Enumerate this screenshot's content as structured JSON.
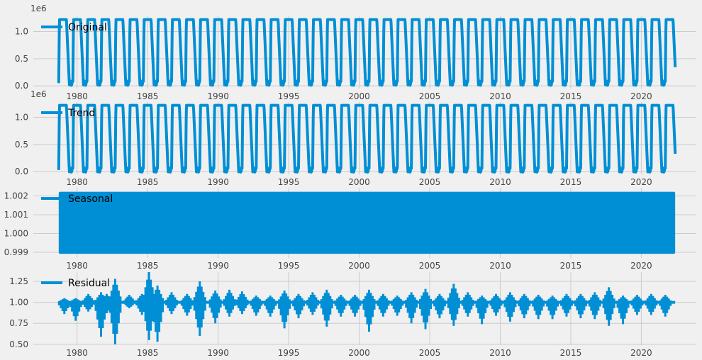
{
  "figure": {
    "background": "#f0f0f0",
    "line_color": "#008fd5",
    "grid_color": "#cbcbcb"
  },
  "chart_data": [
    {
      "type": "line",
      "name": "original",
      "series": [
        {
          "name": "Original"
        }
      ],
      "x_range": [
        1976.9,
        2023.9
      ],
      "ylim": [
        -0.05,
        1.28
      ],
      "yticks": [
        0.0,
        0.5,
        1.0
      ],
      "ytick_labels": [
        "0.0",
        "0.5",
        "1.0"
      ],
      "offset_label": "1e6",
      "xticks": [
        1980,
        1985,
        1990,
        1995,
        2000,
        2005,
        2010,
        2015,
        2020
      ],
      "xtick_labels": [
        "1980",
        "1985",
        "1990",
        "1995",
        "2000",
        "2005",
        "2010",
        "2015",
        "2020"
      ],
      "data_start": 1978.7,
      "data_end": 2022.4,
      "seasonal_amplitude": {
        "low": 0.05,
        "high": 1.22
      },
      "legend": "top-left",
      "grid": true
    },
    {
      "type": "line",
      "name": "trend",
      "series": [
        {
          "name": "Trend"
        }
      ],
      "x_range": [
        1976.9,
        2023.9
      ],
      "ylim": [
        -0.05,
        1.28
      ],
      "yticks": [
        0.0,
        0.5,
        1.0
      ],
      "ytick_labels": [
        "0.0",
        "0.5",
        "1.0"
      ],
      "offset_label": "1e6",
      "xticks": [
        1980,
        1985,
        1990,
        1995,
        2000,
        2005,
        2010,
        2015,
        2020
      ],
      "xtick_labels": [
        "1980",
        "1985",
        "1990",
        "1995",
        "2000",
        "2005",
        "2010",
        "2015",
        "2020"
      ],
      "data_start": 1978.7,
      "data_end": 2022.4,
      "seasonal_amplitude": {
        "low": 0.03,
        "high": 1.22
      },
      "legend": "top-left",
      "grid": true
    },
    {
      "type": "line",
      "name": "seasonal",
      "series": [
        {
          "name": "Seasonal"
        }
      ],
      "x_range": [
        1976.9,
        2023.9
      ],
      "ylim": [
        0.9987,
        1.00243
      ],
      "yticks": [
        0.999,
        1.0,
        1.001,
        1.002
      ],
      "ytick_labels": [
        "0.999",
        "1.000",
        "1.001",
        "1.002"
      ],
      "xticks": [
        1980,
        1985,
        1990,
        1995,
        2000,
        2005,
        2010,
        2015,
        2020
      ],
      "xtick_labels": [
        "1980",
        "1985",
        "1990",
        "1995",
        "2000",
        "2005",
        "2010",
        "2015",
        "2020"
      ],
      "data_start": 1978.7,
      "data_end": 2022.4,
      "value_band": [
        0.99892,
        1.00222
      ],
      "legend": "top-left",
      "grid": true
    },
    {
      "type": "line",
      "name": "residual",
      "series": [
        {
          "name": "Residual"
        }
      ],
      "x_range": [
        1976.9,
        2023.9
      ],
      "ylim": [
        0.49,
        1.36
      ],
      "yticks": [
        0.5,
        0.75,
        1.0,
        1.25
      ],
      "ytick_labels": [
        "0.50",
        "0.75",
        "1.00",
        "1.25"
      ],
      "xticks": [
        1980,
        1985,
        1990,
        1995,
        2000,
        2005,
        2010,
        2015,
        2020
      ],
      "xtick_labels": [
        "1980",
        "1985",
        "1990",
        "1995",
        "2000",
        "2005",
        "2010",
        "2015",
        "2020"
      ],
      "data_start": 1978.7,
      "data_end": 2022.4,
      "baseline": 1.0,
      "spikes": [
        {
          "x": 1979.1,
          "lo": 0.86,
          "hi": 1.05
        },
        {
          "x": 1979.9,
          "lo": 0.78,
          "hi": 1.05
        },
        {
          "x": 1980.8,
          "lo": 0.89,
          "hi": 1.1
        },
        {
          "x": 1981.7,
          "lo": 0.59,
          "hi": 1.12
        },
        {
          "x": 1982.1,
          "lo": 0.87,
          "hi": 1.1
        },
        {
          "x": 1982.7,
          "lo": 0.5,
          "hi": 1.28
        },
        {
          "x": 1983.7,
          "lo": 0.93,
          "hi": 1.09
        },
        {
          "x": 1984.6,
          "lo": 0.85,
          "hi": 1.1
        },
        {
          "x": 1985.1,
          "lo": 0.55,
          "hi": 1.36
        },
        {
          "x": 1985.7,
          "lo": 0.53,
          "hi": 1.2
        },
        {
          "x": 1986.7,
          "lo": 0.86,
          "hi": 1.12
        },
        {
          "x": 1987.8,
          "lo": 0.84,
          "hi": 1.1
        },
        {
          "x": 1988.7,
          "lo": 0.6,
          "hi": 1.25
        },
        {
          "x": 1989.8,
          "lo": 0.75,
          "hi": 1.14
        },
        {
          "x": 1990.8,
          "lo": 0.83,
          "hi": 1.15
        },
        {
          "x": 1991.7,
          "lo": 0.86,
          "hi": 1.13
        },
        {
          "x": 1992.7,
          "lo": 0.84,
          "hi": 1.08
        },
        {
          "x": 1993.7,
          "lo": 0.83,
          "hi": 1.08
        },
        {
          "x": 1994.7,
          "lo": 0.69,
          "hi": 1.14
        },
        {
          "x": 1995.7,
          "lo": 0.81,
          "hi": 1.1
        },
        {
          "x": 1996.7,
          "lo": 0.85,
          "hi": 1.12
        },
        {
          "x": 1997.7,
          "lo": 0.71,
          "hi": 1.15
        },
        {
          "x": 1998.7,
          "lo": 0.83,
          "hi": 1.09
        },
        {
          "x": 1999.7,
          "lo": 0.83,
          "hi": 1.09
        },
        {
          "x": 2000.7,
          "lo": 0.65,
          "hi": 1.15
        },
        {
          "x": 2001.7,
          "lo": 0.83,
          "hi": 1.1
        },
        {
          "x": 2002.7,
          "lo": 0.84,
          "hi": 1.08
        },
        {
          "x": 2003.7,
          "lo": 0.75,
          "hi": 1.12
        },
        {
          "x": 2004.7,
          "lo": 0.68,
          "hi": 1.16
        },
        {
          "x": 2005.7,
          "lo": 0.81,
          "hi": 1.1
        },
        {
          "x": 2006.7,
          "lo": 0.72,
          "hi": 1.22
        },
        {
          "x": 2007.7,
          "lo": 0.83,
          "hi": 1.12
        },
        {
          "x": 2008.7,
          "lo": 0.74,
          "hi": 1.08
        },
        {
          "x": 2009.7,
          "lo": 0.84,
          "hi": 1.1
        },
        {
          "x": 2010.7,
          "lo": 0.77,
          "hi": 1.12
        },
        {
          "x": 2011.7,
          "lo": 0.81,
          "hi": 1.1
        },
        {
          "x": 2012.7,
          "lo": 0.8,
          "hi": 1.09
        },
        {
          "x": 2013.7,
          "lo": 0.8,
          "hi": 1.08
        },
        {
          "x": 2014.7,
          "lo": 0.83,
          "hi": 1.1
        },
        {
          "x": 2015.7,
          "lo": 0.81,
          "hi": 1.1
        },
        {
          "x": 2016.7,
          "lo": 0.8,
          "hi": 1.12
        },
        {
          "x": 2017.7,
          "lo": 0.72,
          "hi": 1.18
        },
        {
          "x": 2018.7,
          "lo": 0.74,
          "hi": 1.08
        },
        {
          "x": 2019.7,
          "lo": 0.85,
          "hi": 1.09
        },
        {
          "x": 2020.7,
          "lo": 0.85,
          "hi": 1.1
        },
        {
          "x": 2021.7,
          "lo": 0.83,
          "hi": 1.09
        }
      ],
      "legend": "top-left",
      "grid": true
    }
  ]
}
